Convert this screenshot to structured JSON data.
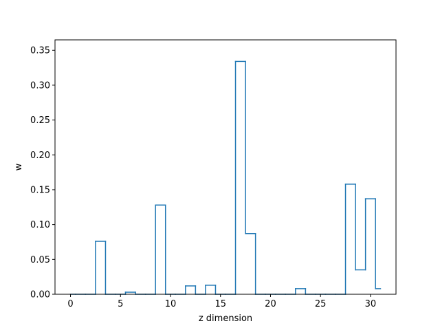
{
  "chart_data": {
    "type": "line",
    "drawstyle": "steps-mid",
    "xlabel": "z dimension",
    "ylabel": "w",
    "xlim": [
      -1.55,
      32.55
    ],
    "ylim": [
      0,
      0.365
    ],
    "xticks": [
      0,
      5,
      10,
      15,
      20,
      25,
      30
    ],
    "xtick_labels": [
      "0",
      "5",
      "10",
      "15",
      "20",
      "25",
      "30"
    ],
    "yticks": [
      0,
      0.05,
      0.1,
      0.15,
      0.2,
      0.25,
      0.3,
      0.35
    ],
    "ytick_labels": [
      "0.00",
      "0.05",
      "0.10",
      "0.15",
      "0.20",
      "0.25",
      "0.30",
      "0.35"
    ],
    "grid": false,
    "series": [
      {
        "color": "#1f77b4",
        "x": [
          0,
          1,
          2,
          3,
          4,
          5,
          6,
          7,
          8,
          9,
          10,
          11,
          12,
          13,
          14,
          15,
          16,
          17,
          18,
          19,
          20,
          21,
          22,
          23,
          24,
          25,
          26,
          27,
          28,
          29,
          30,
          31
        ],
        "values": [
          0,
          0,
          0,
          0.076,
          0,
          0,
          0.003,
          0,
          0,
          0.128,
          0,
          0,
          0.012,
          0,
          0.013,
          0,
          0,
          0.334,
          0.087,
          0,
          0,
          0,
          0,
          0.008,
          0,
          0,
          0,
          0,
          0.158,
          0.035,
          0.137,
          0.008
        ]
      }
    ]
  }
}
